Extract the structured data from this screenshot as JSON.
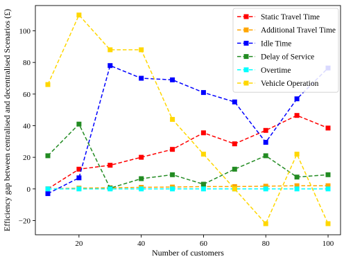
{
  "chart_data": {
    "type": "line",
    "xlabel": "Number of customers",
    "ylabel": "Efficiency gap between centralised and decentralised Scenarios (£)",
    "xlim": [
      6,
      104
    ],
    "ylim": [
      -29,
      116
    ],
    "xticks": [
      20,
      40,
      60,
      80,
      100
    ],
    "yticks": [
      -20,
      0,
      20,
      40,
      60,
      80,
      100
    ],
    "grid": false,
    "legend_position": "top-right",
    "x": [
      10,
      20,
      30,
      40,
      50,
      60,
      70,
      80,
      90,
      100
    ],
    "series": [
      {
        "name": "Static Travel Time",
        "color": "#ff0000",
        "values": [
          0,
          12.5,
          15,
          20,
          25,
          35.5,
          28.5,
          37,
          46.5,
          38.5
        ]
      },
      {
        "name": "Additional Travel Time",
        "color": "#ffa500",
        "values": [
          0,
          0.5,
          0.7,
          1,
          1.2,
          1.5,
          1.5,
          1.7,
          2,
          2
        ]
      },
      {
        "name": "Idle Time",
        "color": "#0000ff",
        "values": [
          -3,
          7,
          78,
          70,
          69,
          61,
          55,
          29.5,
          57,
          76.5
        ]
      },
      {
        "name": "Delay of Service",
        "color": "#228b22",
        "values": [
          21,
          41,
          0.5,
          6.5,
          9,
          3,
          12.5,
          21,
          7.5,
          9
        ]
      },
      {
        "name": "Overtime",
        "color": "#00ffff",
        "values": [
          0,
          0,
          0,
          0,
          0,
          0,
          0,
          0,
          0,
          0
        ]
      },
      {
        "name": "Vehicle Operation",
        "color": "#ffd700",
        "values": [
          66,
          110,
          88,
          88,
          44,
          22,
          0,
          -22,
          22,
          -22
        ]
      }
    ]
  }
}
